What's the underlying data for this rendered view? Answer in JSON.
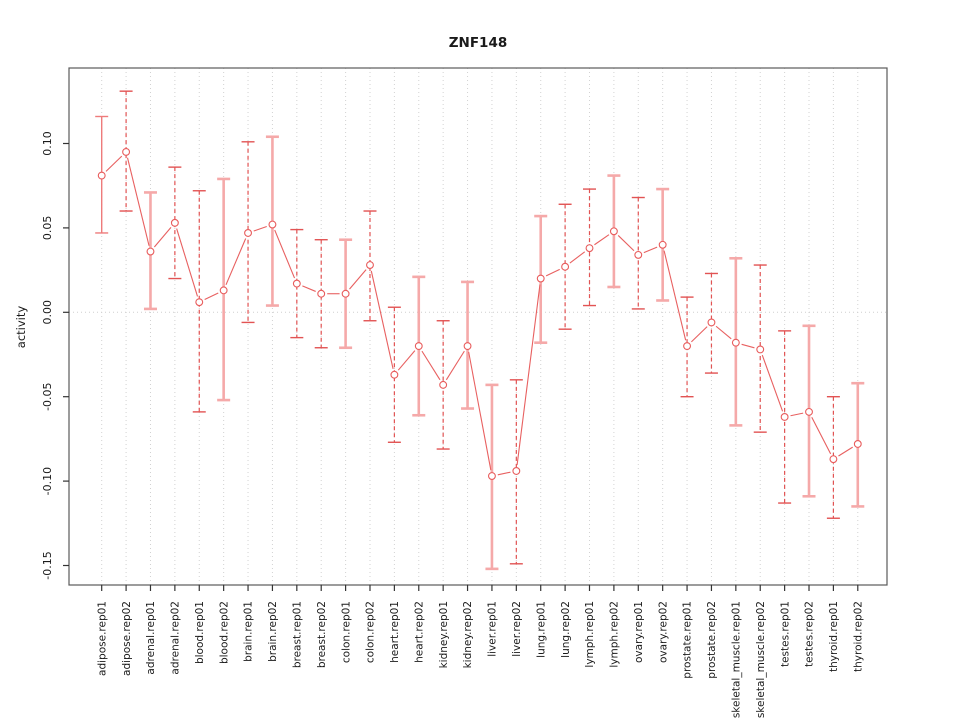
{
  "chart_data": {
    "type": "line",
    "title": "ZNF148",
    "xlabel": "",
    "ylabel": "activity",
    "ylim": [
      -0.1615,
      0.1447
    ],
    "yticks": [
      0.1,
      0.05,
      0.0,
      -0.05,
      -0.1,
      -0.15
    ],
    "ytick_labels": [
      "0.10",
      "0.05",
      "0.00",
      "-0.05",
      "-0.10",
      "-0.15"
    ],
    "grid": "dotted vertical gridline per category; dotted horizontal line at 0",
    "legend_position": "none",
    "error_bars": true,
    "categories": [
      "adipose.rep01",
      "adipose.rep02",
      "adrenal.rep01",
      "adrenal.rep02",
      "blood.rep01",
      "blood.rep02",
      "brain.rep01",
      "brain.rep02",
      "breast.rep01",
      "breast.rep02",
      "colon.rep01",
      "colon.rep02",
      "heart.rep01",
      "heart.rep02",
      "kidney.rep01",
      "kidney.rep02",
      "liver.rep01",
      "liver.rep02",
      "lung.rep01",
      "lung.rep02",
      "lymph.rep01",
      "lymph.rep02",
      "ovary.rep01",
      "ovary.rep02",
      "prostate.rep01",
      "prostate.rep02",
      "skeletal_muscle.rep01",
      "skeletal_muscle.rep02",
      "testes.rep01",
      "testes.rep02",
      "thyroid.rep01",
      "thyroid.rep02"
    ],
    "series": [
      {
        "name": "activity",
        "values": [
          0.081,
          0.095,
          0.036,
          0.053,
          0.006,
          0.013,
          0.047,
          0.052,
          0.017,
          0.011,
          0.011,
          0.028,
          -0.037,
          -0.02,
          -0.043,
          -0.02,
          -0.097,
          -0.094,
          0.02,
          0.027,
          0.038,
          0.048,
          0.034,
          0.04,
          -0.02,
          -0.006,
          -0.018,
          -0.022,
          -0.062,
          -0.059,
          -0.087,
          -0.078
        ],
        "error_low": [
          0.047,
          0.06,
          0.002,
          0.02,
          -0.059,
          -0.052,
          -0.006,
          0.004,
          -0.015,
          -0.021,
          -0.021,
          -0.005,
          -0.077,
          -0.061,
          -0.081,
          -0.057,
          -0.152,
          -0.149,
          -0.018,
          -0.01,
          0.004,
          0.015,
          0.002,
          0.007,
          -0.05,
          -0.036,
          -0.067,
          -0.071,
          -0.113,
          -0.109,
          -0.122,
          -0.115
        ],
        "error_high": [
          0.116,
          0.131,
          0.071,
          0.086,
          0.072,
          0.079,
          0.101,
          0.104,
          0.049,
          0.043,
          0.043,
          0.06,
          0.003,
          0.021,
          -0.005,
          0.018,
          -0.043,
          -0.04,
          0.057,
          0.064,
          0.073,
          0.081,
          0.068,
          0.073,
          0.009,
          0.023,
          0.032,
          0.028,
          -0.011,
          -0.008,
          -0.05,
          -0.042
        ],
        "bar_styles": [
          "solid_red",
          "dashed",
          "solid_pink",
          "dashed",
          "dashed",
          "solid_pink",
          "dashed",
          "solid_pink",
          "dashed",
          "dashed",
          "solid_pink",
          "dashed",
          "dashed",
          "solid_pink",
          "dashed",
          "solid_pink",
          "solid_pink",
          "dashed",
          "solid_pink",
          "dashed",
          "dashed",
          "solid_pink",
          "dashed",
          "solid_pink",
          "dashed",
          "dashed",
          "solid_pink",
          "dashed",
          "dashed",
          "solid_pink",
          "dashed",
          "solid_pink"
        ]
      }
    ],
    "colors": {
      "point": "#e85c5c",
      "connector_line": "#e86060",
      "bar_dashed": "#e25353",
      "bar_solid_pink": "#f5a9a9",
      "bar_solid_red": "#ee7b7b",
      "grid": "#d2d2d2",
      "zero_line": "#cfcfcf",
      "box": "#5a5a5a",
      "tick": "#333333",
      "text": "#1a1a1a"
    }
  }
}
